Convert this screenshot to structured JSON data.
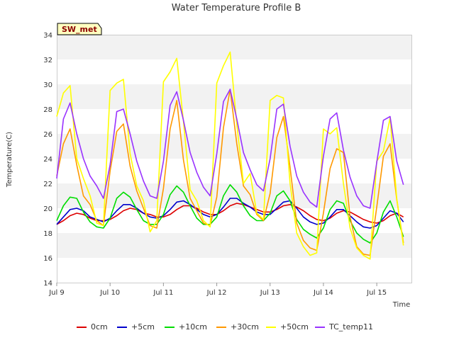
{
  "chart_data": {
    "type": "line",
    "title": "Water Temperature Profile B",
    "xlabel": "Time",
    "ylabel": "Temperature(C)",
    "station_tag": "SW_met",
    "xlim": [
      0,
      6.65
    ],
    "ylim": [
      14,
      34
    ],
    "yticks": [
      14,
      16,
      18,
      20,
      22,
      24,
      26,
      28,
      30,
      32,
      34
    ],
    "xticks": [
      {
        "value": 0,
        "label": "Jul 9"
      },
      {
        "value": 1,
        "label": "Jul 10"
      },
      {
        "value": 2,
        "label": "Jul 11"
      },
      {
        "value": 3,
        "label": "Jul 12"
      },
      {
        "value": 4,
        "label": "Jul 13"
      },
      {
        "value": 5,
        "label": "Jul 14"
      },
      {
        "value": 6,
        "label": "Jul 15"
      }
    ],
    "x": [
      0,
      0.125,
      0.25,
      0.375,
      0.5,
      0.625,
      0.75,
      0.875,
      1,
      1.125,
      1.25,
      1.375,
      1.5,
      1.625,
      1.75,
      1.875,
      2,
      2.125,
      2.25,
      2.375,
      2.5,
      2.625,
      2.75,
      2.875,
      3,
      3.125,
      3.25,
      3.375,
      3.5,
      3.625,
      3.75,
      3.875,
      4,
      4.125,
      4.25,
      4.375,
      4.5,
      4.625,
      4.75,
      4.875,
      5,
      5.125,
      5.25,
      5.375,
      5.5,
      5.625,
      5.75,
      5.875,
      6,
      6.125,
      6.25,
      6.375,
      6.5
    ],
    "series": [
      {
        "name": "0cm",
        "color": "#dd0000",
        "values": [
          18.7,
          19.0,
          19.4,
          19.6,
          19.5,
          19.2,
          19.0,
          19.0,
          19.1,
          19.4,
          19.8,
          20.0,
          19.9,
          19.6,
          19.5,
          19.3,
          19.3,
          19.5,
          19.9,
          20.2,
          20.2,
          20.0,
          19.7,
          19.5,
          19.5,
          19.8,
          20.2,
          20.4,
          20.3,
          20.1,
          19.9,
          19.7,
          19.7,
          19.9,
          20.2,
          20.3,
          20.1,
          19.8,
          19.4,
          19.1,
          19.0,
          19.2,
          19.6,
          19.8,
          19.7,
          19.4,
          19.1,
          18.9,
          18.8,
          19.0,
          19.4,
          19.6,
          19.3
        ]
      },
      {
        "name": "+5cm",
        "color": "#0000cc",
        "values": [
          18.7,
          19.3,
          19.9,
          20.0,
          19.8,
          19.3,
          19.1,
          18.9,
          19.2,
          19.8,
          20.3,
          20.3,
          20.0,
          19.6,
          19.3,
          19.2,
          19.4,
          19.9,
          20.5,
          20.6,
          20.3,
          19.9,
          19.5,
          19.3,
          19.5,
          20.1,
          20.8,
          20.8,
          20.4,
          20.1,
          19.7,
          19.5,
          19.5,
          20.0,
          20.5,
          20.6,
          20.0,
          19.3,
          18.9,
          18.7,
          18.8,
          19.3,
          19.9,
          19.9,
          19.4,
          18.9,
          18.5,
          18.4,
          18.6,
          19.2,
          19.8,
          19.6,
          18.9
        ]
      },
      {
        "name": "+10cm",
        "color": "#00dd00",
        "values": [
          19.0,
          20.2,
          20.9,
          20.8,
          19.7,
          18.9,
          18.5,
          18.4,
          19.2,
          20.8,
          21.3,
          20.9,
          19.9,
          19.0,
          18.7,
          18.7,
          19.5,
          21.1,
          21.8,
          21.3,
          20.2,
          19.2,
          18.7,
          18.7,
          19.3,
          21.0,
          21.9,
          21.3,
          20.2,
          19.4,
          19.0,
          19.0,
          19.6,
          21.0,
          21.4,
          20.6,
          19.1,
          18.3,
          17.9,
          17.6,
          18.4,
          19.9,
          20.6,
          20.4,
          19.0,
          18.0,
          17.5,
          17.2,
          18.0,
          19.7,
          20.6,
          19.3,
          17.7
        ]
      },
      {
        "name": "+30cm",
        "color": "#ff9900",
        "values": [
          22.6,
          25.2,
          26.4,
          23.5,
          21.0,
          20.3,
          19.0,
          18.6,
          23.0,
          26.2,
          26.8,
          23.4,
          21.4,
          20.0,
          18.6,
          18.4,
          21.6,
          26.4,
          28.7,
          23.9,
          20.8,
          19.8,
          18.8,
          18.6,
          20.9,
          26.5,
          29.6,
          25.2,
          21.8,
          21.1,
          19.5,
          19.0,
          21.2,
          25.7,
          27.4,
          23.3,
          18.8,
          17.4,
          16.8,
          16.6,
          19.6,
          23.2,
          24.8,
          24.5,
          19.3,
          16.9,
          16.3,
          16.2,
          20.1,
          24.2,
          25.2,
          20.7,
          17.2
        ]
      },
      {
        "name": "+50cm",
        "color": "#ffff00",
        "values": [
          27.4,
          29.3,
          29.9,
          24.0,
          22.4,
          21.0,
          18.8,
          18.6,
          29.5,
          30.1,
          30.4,
          24.4,
          21.8,
          20.6,
          18.1,
          19.0,
          30.2,
          31.0,
          32.1,
          27.0,
          21.5,
          20.6,
          19.0,
          18.5,
          30.1,
          31.5,
          32.6,
          26.8,
          22.0,
          22.8,
          19.6,
          19.1,
          28.7,
          29.1,
          28.9,
          22.0,
          18.0,
          16.9,
          16.2,
          16.4,
          26.4,
          26.0,
          26.5,
          22.0,
          18.4,
          16.8,
          16.2,
          15.9,
          23.8,
          24.6,
          27.3,
          20.8,
          17.0
        ]
      },
      {
        "name": "TC_temp11",
        "color": "#9933ff",
        "values": [
          22.4,
          27.2,
          28.5,
          26.0,
          24.0,
          22.6,
          21.8,
          20.8,
          23.5,
          27.8,
          28.0,
          26.0,
          23.8,
          22.2,
          21.0,
          20.8,
          23.8,
          28.3,
          29.4,
          27.1,
          24.5,
          22.9,
          21.7,
          21.0,
          24.4,
          28.6,
          29.6,
          27.2,
          24.5,
          23.1,
          21.9,
          21.4,
          24.0,
          28.0,
          28.4,
          25.0,
          22.6,
          21.3,
          20.5,
          20.1,
          24.2,
          27.2,
          27.7,
          24.7,
          22.5,
          21.0,
          20.2,
          20.0,
          23.7,
          27.1,
          27.4,
          23.8,
          21.9
        ]
      }
    ],
    "legend_position": "bottom",
    "background_bands": true
  }
}
